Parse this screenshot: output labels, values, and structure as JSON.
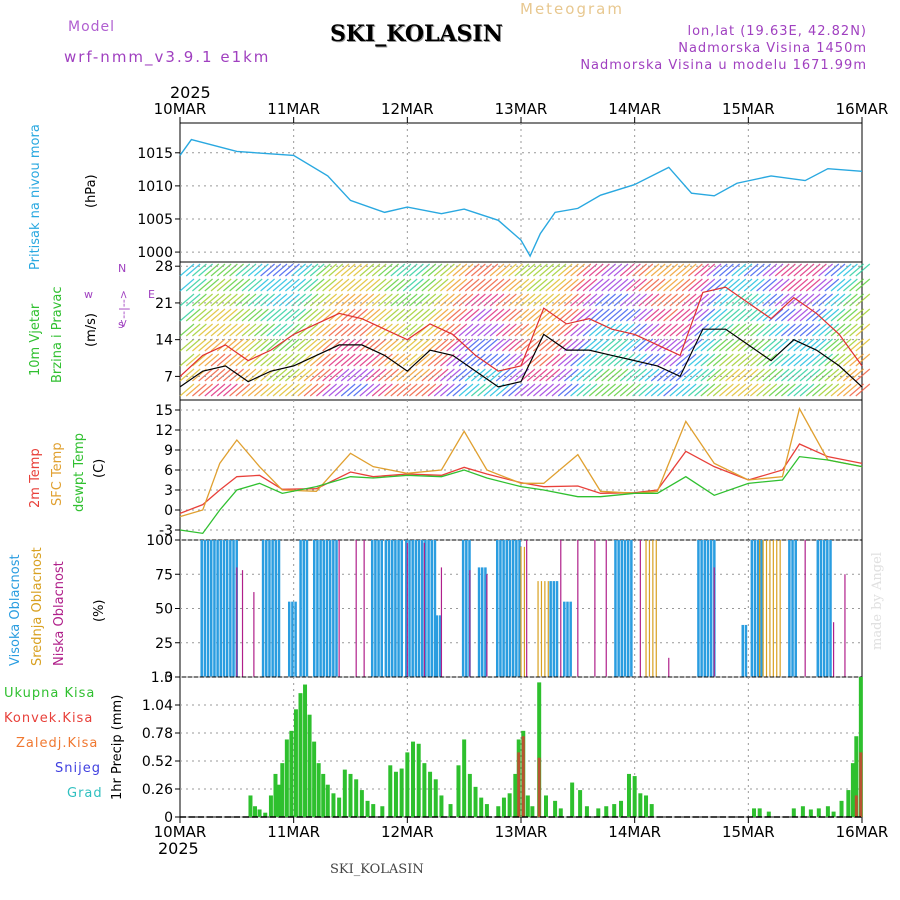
{
  "header": {
    "title": "SKI_KOLASIN",
    "meteogram": "Meteogram",
    "model_label": "Model",
    "model_name": "wrf-nmm_v3.9.1 e1km",
    "lonlat": "lon,lat (19.63E, 42.82N)",
    "elevation": "Nadmorska Visina 1450m",
    "model_elevation": "Nadmorska Visina u modelu 1671.99m",
    "year_top": "2025",
    "year_bottom": "2025",
    "footer": "SKI_KOLASIN",
    "signature": "made by Angel"
  },
  "colors": {
    "pressure": "#29a8e0",
    "temp2m": "#e8403a",
    "sfc": "#e0a030",
    "dewpt": "#30c030",
    "visoka": "#2a9de0",
    "srednja": "#d8a020",
    "niska": "#b0208a",
    "precip": "#2ec02e",
    "konvek": "#d04030",
    "purple": "#a040c0",
    "wind_speed": "#000000",
    "gust": "#e03030"
  },
  "chart_data": [
    {
      "id": "pressure",
      "type": "line",
      "ylabel": "Pritisak na nivou mora",
      "unit": "(hPa)",
      "ylim": [
        998.5,
        1019.5
      ],
      "yticks": [
        1000,
        1005,
        1010,
        1015
      ],
      "x_labels": [
        "10MAR",
        "11MAR",
        "12MAR",
        "13MAR",
        "14MAR",
        "15MAR",
        "16MAR"
      ],
      "x_days": [
        0,
        0.1,
        0.5,
        1.0,
        1.3,
        1.5,
        1.8,
        2.0,
        2.3,
        2.5,
        2.8,
        3.0,
        3.08,
        3.17,
        3.3,
        3.5,
        3.7,
        4.0,
        4.3,
        4.5,
        4.7,
        4.9,
        5.2,
        5.5,
        5.7,
        6.0
      ],
      "series": [
        {
          "values": [
            1014.6,
            1017.0,
            1015.2,
            1014.6,
            1011.5,
            1007.8,
            1006.0,
            1006.8,
            1005.8,
            1006.5,
            1004.8,
            1001.8,
            999.4,
            1002.8,
            1006.0,
            1006.6,
            1008.6,
            1010.2,
            1012.8,
            1008.9,
            1008.5,
            1010.4,
            1011.5,
            1010.8,
            1012.6,
            1012.2
          ]
        }
      ],
      "grid": true
    },
    {
      "id": "wind",
      "type": "line",
      "ylabel": [
        "10m Vjetar",
        "Brzina i Pravac"
      ],
      "unit": "(m/s)",
      "ylim": [
        2.5,
        28.8
      ],
      "yticks": [
        7,
        14,
        21,
        28
      ],
      "direction_legend": [
        "w",
        "<--|-->",
        "s",
        "N",
        "E"
      ],
      "x_days": [
        0,
        0.2,
        0.4,
        0.6,
        0.8,
        1.0,
        1.2,
        1.4,
        1.6,
        1.8,
        2.0,
        2.2,
        2.4,
        2.6,
        2.8,
        3.0,
        3.2,
        3.4,
        3.6,
        3.8,
        4.0,
        4.2,
        4.4,
        4.6,
        4.8,
        5.0,
        5.2,
        5.4,
        5.6,
        5.8,
        6.0
      ],
      "series": [
        {
          "name": "speed",
          "values": [
            5,
            8,
            9,
            6,
            8,
            9,
            11,
            13,
            13,
            11,
            8,
            12,
            11,
            8,
            5,
            6,
            15,
            12,
            12,
            11,
            10,
            9,
            7,
            16,
            16,
            13,
            10,
            14,
            12,
            9,
            5
          ]
        },
        {
          "name": "gust",
          "values": [
            7,
            11,
            13,
            10,
            12,
            15,
            17,
            19,
            18,
            16,
            14,
            17,
            15,
            11,
            8,
            9,
            20,
            17,
            18,
            16,
            15,
            13,
            11,
            23,
            24,
            21,
            18,
            22,
            19,
            15,
            9
          ]
        }
      ],
      "grid": true
    },
    {
      "id": "temperature",
      "type": "line",
      "ylabels": [
        "2m Temp",
        "SFC Temp",
        "dewpt Temp"
      ],
      "unit": "(C)",
      "ylim": [
        -4.5,
        16.5
      ],
      "yticks": [
        -3,
        0,
        3,
        6,
        9,
        12,
        15
      ],
      "x_days": [
        0,
        0.2,
        0.35,
        0.5,
        0.7,
        0.9,
        1.2,
        1.5,
        1.7,
        2.0,
        2.3,
        2.5,
        2.7,
        3.0,
        3.2,
        3.5,
        3.7,
        4.0,
        4.2,
        4.45,
        4.7,
        5.0,
        5.3,
        5.45,
        5.7,
        6.0
      ],
      "series": [
        {
          "name": "2m Temp",
          "values": [
            -0.5,
            0.8,
            3.0,
            5.0,
            5.2,
            3.1,
            3.2,
            5.7,
            5.0,
            5.4,
            5.2,
            6.4,
            5.4,
            4.1,
            3.5,
            3.6,
            2.5,
            2.6,
            3.0,
            8.8,
            6.5,
            4.5,
            6.0,
            9.9,
            8.0,
            7.0
          ]
        },
        {
          "name": "SFC Temp",
          "values": [
            -1.0,
            0.0,
            7.0,
            10.5,
            6.5,
            3.0,
            2.8,
            8.5,
            6.5,
            5.5,
            6.0,
            11.8,
            6.0,
            4.0,
            4.0,
            8.3,
            2.8,
            2.5,
            2.8,
            13.3,
            7.0,
            4.5,
            5.0,
            15.2,
            7.5,
            6.5
          ]
        },
        {
          "name": "dewpt Temp",
          "values": [
            -3.0,
            -3.5,
            0.0,
            3.0,
            4.0,
            2.5,
            3.5,
            5.0,
            4.8,
            5.2,
            5.0,
            6.0,
            4.8,
            3.5,
            3.0,
            2.0,
            2.0,
            2.5,
            2.5,
            5.0,
            2.2,
            4.0,
            4.5,
            8.0,
            7.5,
            6.5
          ]
        }
      ],
      "grid": true
    },
    {
      "id": "cloud",
      "type": "bar",
      "ylabels": [
        "Visoka Oblacnost",
        "Srednja Oblacnost",
        "Niska Oblacnost"
      ],
      "unit": "(%)",
      "ylim": [
        0,
        100
      ],
      "yticks": [
        0,
        25,
        50,
        75,
        100
      ],
      "series": [
        {
          "name": "Visoka Oblacnost",
          "bars": [
            [
              0.18,
              0.3,
              100
            ],
            [
              0.32,
              0.5,
              100
            ],
            [
              0.72,
              0.88,
              100
            ],
            [
              0.95,
              1.03,
              55
            ],
            [
              1.05,
              1.13,
              100
            ],
            [
              1.17,
              1.38,
              100
            ],
            [
              1.68,
              1.77,
              100
            ],
            [
              1.8,
              1.95,
              100
            ],
            [
              1.98,
              2.24,
              100
            ],
            [
              2.25,
              2.3,
              45
            ],
            [
              2.48,
              2.55,
              100
            ],
            [
              2.62,
              2.7,
              80
            ],
            [
              2.78,
              2.98,
              100
            ],
            [
              3.25,
              3.31,
              70
            ],
            [
              3.37,
              3.43,
              55
            ],
            [
              3.82,
              3.98,
              100
            ],
            [
              4.55,
              4.7,
              100
            ],
            [
              4.94,
              4.99,
              38
            ],
            [
              5.02,
              5.12,
              100
            ],
            [
              5.35,
              5.42,
              100
            ],
            [
              5.6,
              5.72,
              100
            ]
          ]
        },
        {
          "name": "Srednja Oblacnost",
          "bars": [
            [
              3.0,
              3.05,
              95
            ],
            [
              3.15,
              3.25,
              70
            ],
            [
              4.1,
              4.2,
              100
            ],
            [
              5.1,
              5.3,
              100
            ]
          ]
        },
        {
          "name": "Niska Oblacnost",
          "lines": [
            [
              0.5,
              80
            ],
            [
              0.55,
              78
            ],
            [
              0.65,
              62
            ],
            [
              1.4,
              100
            ],
            [
              1.55,
              100
            ],
            [
              1.62,
              100
            ],
            [
              2.0,
              98
            ],
            [
              2.15,
              98
            ],
            [
              2.3,
              80
            ],
            [
              2.55,
              78
            ],
            [
              2.7,
              75
            ],
            [
              3.05,
              100
            ],
            [
              3.35,
              100
            ],
            [
              3.5,
              100
            ],
            [
              3.65,
              100
            ],
            [
              3.75,
              100
            ],
            [
              4.05,
              100
            ],
            [
              4.3,
              14
            ],
            [
              4.7,
              80
            ],
            [
              5.5,
              100
            ],
            [
              5.75,
              40
            ],
            [
              5.85,
              75
            ]
          ]
        }
      ],
      "grid": true
    },
    {
      "id": "precip",
      "type": "bar",
      "ylabels": [
        "Ukupna Kisa",
        "Konvek.Kisa",
        "Zaledj.Kisa",
        "Snijeg",
        "Grad"
      ],
      "ylabel_axis": "1hr Precip (mm)",
      "ylim": [
        0,
        1.3
      ],
      "yticks": [
        "0",
        "0.26",
        "0.52",
        "0.78",
        "1.04",
        "1.3"
      ],
      "x_labels": [
        "10MAR",
        "11MAR",
        "12MAR",
        "13MAR",
        "14MAR",
        "15MAR",
        "16MAR"
      ],
      "series": [
        {
          "name": "Ukupna Kisa",
          "bars": [
            [
              0.62,
              0.2
            ],
            [
              0.66,
              0.1
            ],
            [
              0.7,
              0.07
            ],
            [
              0.75,
              0.04
            ],
            [
              0.8,
              0.2
            ],
            [
              0.84,
              0.4
            ],
            [
              0.87,
              0.3
            ],
            [
              0.9,
              0.5
            ],
            [
              0.94,
              0.72
            ],
            [
              0.98,
              0.8
            ],
            [
              1.02,
              1.0
            ],
            [
              1.06,
              1.15
            ],
            [
              1.1,
              1.23
            ],
            [
              1.14,
              0.95
            ],
            [
              1.18,
              0.7
            ],
            [
              1.22,
              0.5
            ],
            [
              1.26,
              0.4
            ],
            [
              1.3,
              0.3
            ],
            [
              1.35,
              0.22
            ],
            [
              1.4,
              0.18
            ],
            [
              1.45,
              0.44
            ],
            [
              1.5,
              0.4
            ],
            [
              1.55,
              0.35
            ],
            [
              1.6,
              0.25
            ],
            [
              1.65,
              0.15
            ],
            [
              1.7,
              0.12
            ],
            [
              1.78,
              0.1
            ],
            [
              1.85,
              0.48
            ],
            [
              1.9,
              0.42
            ],
            [
              1.95,
              0.45
            ],
            [
              2.0,
              0.6
            ],
            [
              2.05,
              0.7
            ],
            [
              2.1,
              0.68
            ],
            [
              2.15,
              0.5
            ],
            [
              2.2,
              0.42
            ],
            [
              2.25,
              0.35
            ],
            [
              2.3,
              0.2
            ],
            [
              2.38,
              0.12
            ],
            [
              2.45,
              0.48
            ],
            [
              2.5,
              0.72
            ],
            [
              2.55,
              0.4
            ],
            [
              2.6,
              0.28
            ],
            [
              2.65,
              0.18
            ],
            [
              2.7,
              0.12
            ],
            [
              2.8,
              0.1
            ],
            [
              2.85,
              0.18
            ],
            [
              2.9,
              0.22
            ],
            [
              2.95,
              0.4
            ],
            [
              2.98,
              0.72
            ],
            [
              3.02,
              0.8
            ],
            [
              3.06,
              0.2
            ],
            [
              3.1,
              0.1
            ],
            [
              3.16,
              1.25
            ],
            [
              3.22,
              0.2
            ],
            [
              3.3,
              0.15
            ],
            [
              3.35,
              0.08
            ],
            [
              3.45,
              0.32
            ],
            [
              3.52,
              0.25
            ],
            [
              3.58,
              0.1
            ],
            [
              3.68,
              0.08
            ],
            [
              3.75,
              0.1
            ],
            [
              3.82,
              0.12
            ],
            [
              3.88,
              0.15
            ],
            [
              3.95,
              0.4
            ],
            [
              4.0,
              0.38
            ],
            [
              4.05,
              0.22
            ],
            [
              4.1,
              0.2
            ],
            [
              4.15,
              0.12
            ],
            [
              5.05,
              0.08
            ],
            [
              5.1,
              0.08
            ],
            [
              5.18,
              0.05
            ],
            [
              5.4,
              0.08
            ],
            [
              5.48,
              0.1
            ],
            [
              5.55,
              0.07
            ],
            [
              5.62,
              0.08
            ],
            [
              5.7,
              0.1
            ],
            [
              5.75,
              0.05
            ],
            [
              5.82,
              0.15
            ],
            [
              5.88,
              0.25
            ],
            [
              5.92,
              0.5
            ],
            [
              5.95,
              0.75
            ],
            [
              5.99,
              1.3
            ]
          ]
        },
        {
          "name": "Konvek.Kisa",
          "bars": [
            [
              2.98,
              0.6
            ],
            [
              3.02,
              0.75
            ],
            [
              3.16,
              0.55
            ],
            [
              5.95,
              0.2
            ],
            [
              5.99,
              0.6
            ]
          ]
        }
      ],
      "grid": true
    }
  ]
}
